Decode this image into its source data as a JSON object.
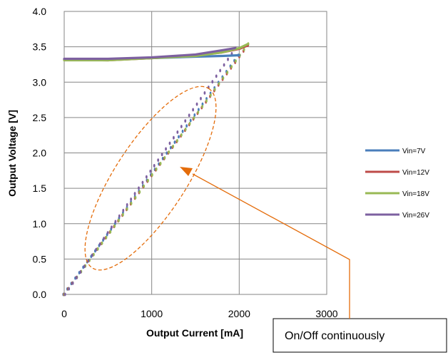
{
  "chart_data": {
    "type": "line",
    "xlabel": "Output Current [mA]",
    "ylabel": "Output Voltage [V]",
    "xlim": [
      0,
      3000
    ],
    "ylim": [
      0.0,
      4.0
    ],
    "x_ticks": [
      "0",
      "1000",
      "2000",
      "3000"
    ],
    "y_ticks": [
      "0.0",
      "0.5",
      "1.0",
      "1.5",
      "2.0",
      "2.5",
      "3.0",
      "3.5",
      "4.0"
    ],
    "grid": "vertical and horizontal",
    "legend_position": "right",
    "series": [
      {
        "name": "Vin=7V",
        "color": "#4a7ebb",
        "regulated": {
          "x": [
            0,
            500,
            1000,
            1500,
            1800,
            2000
          ],
          "y": [
            3.32,
            3.32,
            3.34,
            3.36,
            3.37,
            3.38
          ]
        },
        "foldback": {
          "x_start": 0,
          "x_end": 2000,
          "y_start": 0.0,
          "y_end": 3.38
        }
      },
      {
        "name": "Vin=12V",
        "color": "#be4b48",
        "regulated": {
          "x": [
            0,
            500,
            1000,
            1500,
            1800,
            2000,
            2100
          ],
          "y": [
            3.32,
            3.31,
            3.34,
            3.38,
            3.42,
            3.47,
            3.52
          ]
        },
        "foldback": {
          "x_start": 0,
          "x_end": 2100,
          "y_start": 0.0,
          "y_end": 3.52
        }
      },
      {
        "name": "Vin=18V",
        "color": "#98b954",
        "regulated": {
          "x": [
            0,
            500,
            1000,
            1500,
            1800,
            2000,
            2100
          ],
          "y": [
            3.31,
            3.31,
            3.34,
            3.37,
            3.42,
            3.48,
            3.54
          ]
        },
        "foldback": {
          "x_start": 0,
          "x_end": 2100,
          "y_start": 0.0,
          "y_end": 3.54
        }
      },
      {
        "name": "Vin=26V",
        "color": "#7d60a0",
        "regulated": {
          "x": [
            0,
            500,
            1000,
            1500,
            1800,
            1950
          ],
          "y": [
            3.33,
            3.33,
            3.35,
            3.39,
            3.45,
            3.48
          ]
        },
        "foldback": {
          "x_start": 0,
          "x_end": 1950,
          "y_start": 0.0,
          "y_end": 3.48
        }
      }
    ],
    "annotation": {
      "text": "On/Off continuously",
      "ellipse_color": "#e46c0a",
      "arrow_color": "#e46c0a"
    }
  }
}
